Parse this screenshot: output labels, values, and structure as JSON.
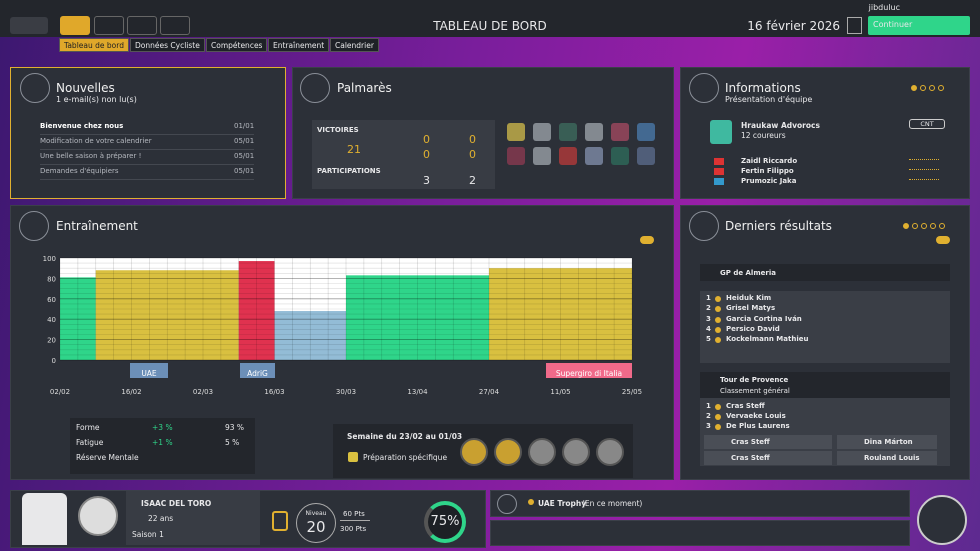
{
  "topbar": {
    "title": "TABLEAU DE BORD",
    "date": "16 février 2026",
    "continue": "Continuer",
    "user": "jibduluc"
  },
  "tabs": [
    "Tableau de bord",
    "Données Cycliste",
    "Compétences",
    "Entraînement",
    "Calendrier"
  ],
  "news": {
    "title": "Nouvelles",
    "subtitle": "1 e-mail(s) non lu(s)",
    "items": [
      {
        "text": "Bienvenue chez nous",
        "date": "01/01"
      },
      {
        "text": "Modification de votre calendrier",
        "date": "05/01"
      },
      {
        "text": "Une belle saison à préparer !",
        "date": "05/01"
      },
      {
        "text": "Demandes d'équipiers",
        "date": "05/01"
      }
    ]
  },
  "palmares": {
    "title": "Palmarès",
    "victories_label": "VICTOIRES",
    "victories": "21",
    "victory_counts": [
      "0",
      "0",
      "0",
      "0"
    ],
    "participations_label": "PARTICIPATIONS",
    "participations": [
      "3",
      "2"
    ]
  },
  "info": {
    "title": "Informations",
    "subtitle": "Présentation d'équipe",
    "team": "Hraukaw Advorocs",
    "riders_count": "12 coureurs",
    "badge": "CNT",
    "riders": [
      "Zaidl Riccardo",
      "Fertin Filippo",
      "Prumozic Jaka"
    ]
  },
  "training": {
    "title": "Entraînement",
    "ylim": [
      0,
      100
    ],
    "yticks": [
      0,
      20,
      40,
      60,
      80,
      100
    ],
    "dates": [
      "02/02",
      "16/02",
      "02/03",
      "16/03",
      "30/03",
      "13/04",
      "27/04",
      "11/05",
      "25/05"
    ],
    "blocks": [
      {
        "weeks": 1,
        "value": 81,
        "color": "#2fd58a"
      },
      {
        "weeks": 4,
        "value": 88,
        "color": "#d9c040"
      },
      {
        "weeks": 1,
        "value": 97,
        "color": "#e0324f"
      },
      {
        "weeks": 2,
        "value": 48,
        "color": "#93bcd6"
      },
      {
        "weeks": 4,
        "value": 83,
        "color": "#2fd58a"
      },
      {
        "weeks": 4,
        "value": 90,
        "color": "#d9c040"
      }
    ],
    "races": [
      "UAE",
      "AdriG",
      "Supergiro di Italia"
    ],
    "stats": [
      {
        "label": "Forme",
        "delta": "+3 %",
        "value": "93 %"
      },
      {
        "label": "Fatigue",
        "delta": "+1 %",
        "value": "5 %"
      },
      {
        "label": "Réserve Mentale"
      }
    ],
    "week": "Semaine du 23/02 au 01/03",
    "plan": "Préparation spécifique"
  },
  "results": {
    "title": "Derniers résultats",
    "race1": {
      "name": "GP de Almeria",
      "ranking": [
        {
          "pos": "1",
          "name": "Heiduk Kim"
        },
        {
          "pos": "2",
          "name": "Grisel Matys"
        },
        {
          "pos": "3",
          "name": "Garcia Cortina Iván"
        },
        {
          "pos": "4",
          "name": "Persico David"
        },
        {
          "pos": "5",
          "name": "Kockelmann Mathieu"
        }
      ]
    },
    "race2": {
      "name": "Tour de Provence",
      "subtitle": "Classement général",
      "ranking": [
        {
          "pos": "1",
          "name": "Cras Steff"
        },
        {
          "pos": "2",
          "name": "Vervaeke Louis"
        },
        {
          "pos": "3",
          "name": "De Plus Laurens"
        }
      ],
      "jerseys": [
        "Cras Steff",
        "Dina Márton",
        "Cras Steff",
        "Rouland Louis"
      ]
    }
  },
  "player": {
    "name": "ISAAC DEL TORO",
    "age": "22 ans",
    "season": "Saison 1",
    "level_label": "Niveau",
    "level": "20",
    "points": "60 Pts",
    "points_max": "300 Pts",
    "progress": "75%"
  },
  "event": {
    "name": "UAE Trophy",
    "status": "(En ce moment)"
  }
}
